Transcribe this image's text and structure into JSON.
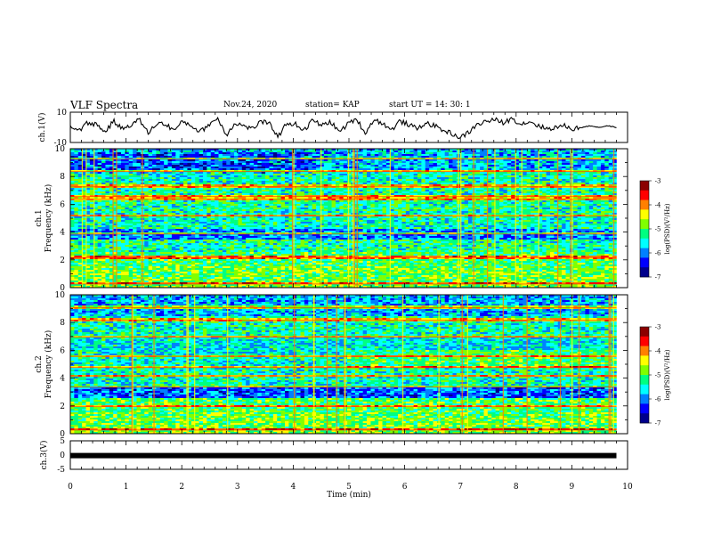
{
  "header": {
    "title": "VLF Spectra",
    "date": "Nov.24, 2020",
    "station": "station= KAP",
    "start": "start UT = 14: 30: 1"
  },
  "chart_data": [
    {
      "type": "line",
      "panel": "ch1-waveform",
      "ylabel": "ch.1(V)",
      "ylim": [
        -10,
        10
      ],
      "yticks": [
        "10",
        "-10"
      ],
      "x_range_min": [
        0,
        9.8
      ],
      "series": [
        {
          "values": [
            1,
            -2,
            3,
            2,
            -3,
            4,
            -1,
            2,
            5,
            -4,
            3,
            2,
            -2,
            4,
            1,
            -3,
            2,
            6,
            -5,
            3,
            1,
            -1,
            4,
            2,
            -6,
            3,
            2,
            -2,
            5,
            1,
            4,
            -3,
            2,
            6,
            -4,
            5,
            3,
            -2,
            4,
            2,
            -1,
            3,
            1,
            -2,
            -4,
            -7,
            -3,
            2,
            4,
            5,
            3,
            6,
            2,
            4,
            1,
            -1,
            0,
            1,
            -1,
            0,
            1,
            0,
            1,
            0
          ]
        }
      ]
    },
    {
      "type": "heatmap",
      "panel": "ch1-spectrogram",
      "ylabel": "Frequency (kHz)",
      "ylabel_ch": "ch.1",
      "ylim": [
        0,
        10
      ],
      "yticks": [
        "0",
        "2",
        "4",
        "6",
        "8",
        "10"
      ],
      "xlim": [
        0,
        10
      ],
      "data_end_min": 9.8,
      "colorbar": {
        "label": "log(PSD)(V²/Hz)",
        "ticks": [
          "-3",
          "-4",
          "-5",
          "-6",
          "-7"
        ],
        "range": [
          -7,
          -3
        ]
      },
      "colors": [
        "#00008b",
        "#0000ff",
        "#0080ff",
        "#00ffff",
        "#00ff80",
        "#80ff00",
        "#ffff00",
        "#ff8000",
        "#ff0000",
        "#8b0000"
      ]
    },
    {
      "type": "heatmap",
      "panel": "ch2-spectrogram",
      "ylabel": "Frequency (kHz)",
      "ylabel_ch": "ch.2",
      "ylim": [
        0,
        10
      ],
      "yticks": [
        "0",
        "2",
        "4",
        "6",
        "8",
        "10"
      ],
      "xlim": [
        0,
        10
      ],
      "data_end_min": 9.8,
      "colorbar": {
        "label": "log(PSD)(V²/Hz)",
        "ticks": [
          "-3",
          "-4",
          "-5",
          "-6",
          "-7"
        ],
        "range": [
          -7,
          -3
        ]
      }
    },
    {
      "type": "line",
      "panel": "ch3-signal",
      "ylabel": "ch.3(V)",
      "ylim": [
        -5,
        5
      ],
      "yticks": [
        "5",
        "0",
        "-5"
      ],
      "series": [
        {
          "values": [
            -0.2,
            -0.2
          ]
        }
      ]
    }
  ],
  "xaxis": {
    "label": "Time (min)",
    "ticks": [
      "0",
      "1",
      "2",
      "3",
      "4",
      "5",
      "6",
      "7",
      "8",
      "9",
      "10"
    ],
    "range": [
      0,
      10
    ]
  }
}
